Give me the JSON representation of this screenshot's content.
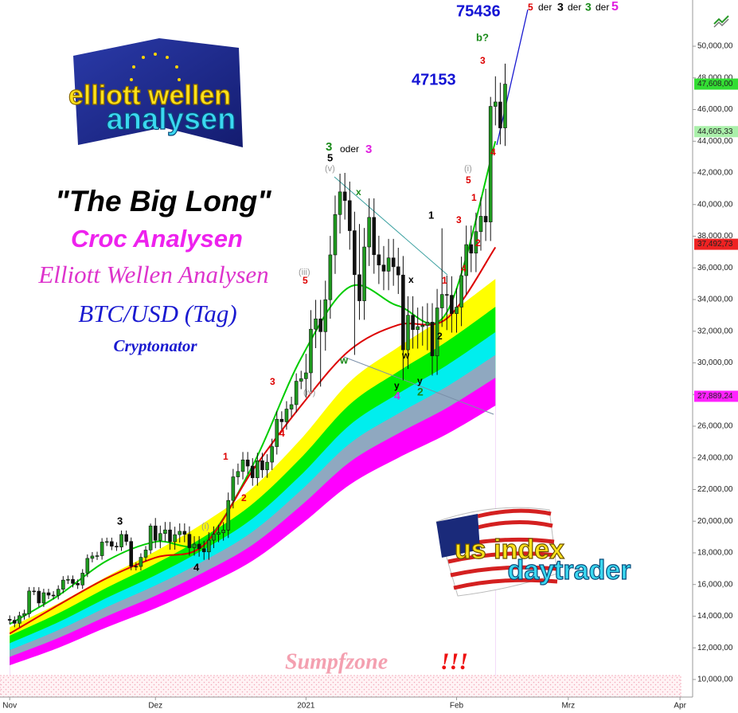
{
  "chart_data": {
    "type": "candlestick",
    "title": "\"The Big Long\"",
    "subtitles": [
      {
        "text": "Croc Analysen",
        "color": "#ee22ee"
      },
      {
        "text": "Elliott Wellen Analysen",
        "color": "#dd33cc"
      },
      {
        "text": "BTC/USD (Tag)",
        "color": "#1a1ad0"
      },
      {
        "text": "Cryptonator",
        "color": "#1a1ad0"
      }
    ],
    "logos": [
      {
        "lines": [
          "elliott wellen",
          "analysen"
        ]
      },
      {
        "lines": [
          "us index",
          "daytrader"
        ]
      }
    ],
    "up_color": "#1f9a1f",
    "down_color": "#111111",
    "grid": false,
    "xlim": [
      -2,
      140.6
    ],
    "xticks": [
      {
        "value": 0,
        "label": "Nov"
      },
      {
        "value": 30,
        "label": "Dez"
      },
      {
        "value": 61,
        "label": "2021"
      },
      {
        "value": 92,
        "label": "Feb"
      },
      {
        "value": 115,
        "label": "Mrz"
      },
      {
        "value": 138,
        "label": "Apr"
      }
    ],
    "ylim": [
      8890,
      52920
    ],
    "yticks": [
      {
        "value": 10000,
        "label": "10,000,00"
      },
      {
        "value": 12000,
        "label": "12,000,00"
      },
      {
        "value": 14000,
        "label": "14,000,00"
      },
      {
        "value": 16000,
        "label": "16,000,00"
      },
      {
        "value": 18000,
        "label": "18,000,00"
      },
      {
        "value": 20000,
        "label": "20,000,00"
      },
      {
        "value": 22000,
        "label": "22,000,00"
      },
      {
        "value": 24000,
        "label": "24,000,00"
      },
      {
        "value": 26000,
        "label": "26,000,00"
      },
      {
        "value": 28000,
        "label": "28,000,00"
      },
      {
        "value": 30000,
        "label": "30,000,00"
      },
      {
        "value": 32000,
        "label": "32,000,00"
      },
      {
        "value": 34000,
        "label": "34,000,00"
      },
      {
        "value": 36000,
        "label": "36,000,00"
      },
      {
        "value": 38000,
        "label": "38,000,00"
      },
      {
        "value": 40000,
        "label": "40,000,00"
      },
      {
        "value": 42000,
        "label": "42,000,00"
      },
      {
        "value": 44000,
        "label": "44,000,00"
      },
      {
        "value": 46000,
        "label": "46,000,00"
      },
      {
        "value": 48000,
        "label": "48,000,00"
      },
      {
        "value": 50000,
        "label": "50,000,00"
      }
    ],
    "x": [
      0,
      1,
      2,
      3,
      4,
      5,
      6,
      7,
      8,
      9,
      10,
      11,
      12,
      13,
      14,
      15,
      16,
      17,
      18,
      19,
      20,
      21,
      22,
      23,
      24,
      25,
      26,
      27,
      28,
      29,
      30,
      31,
      32,
      33,
      34,
      35,
      36,
      37,
      38,
      39,
      40,
      41,
      42,
      43,
      44,
      45,
      46,
      47,
      48,
      49,
      50,
      51,
      52,
      53,
      54,
      55,
      56,
      57,
      58,
      59,
      60,
      61,
      62,
      63,
      64,
      65,
      66,
      67,
      68,
      69,
      70,
      71,
      72,
      73,
      74,
      75,
      76,
      77,
      78,
      79,
      80,
      81,
      82,
      83,
      84,
      85,
      86,
      87,
      88,
      89,
      90,
      91,
      92,
      93,
      94,
      95,
      96,
      97,
      98,
      99,
      100,
      101,
      102
    ],
    "open": [
      13800,
      13740,
      13550,
      14030,
      14160,
      15590,
      15580,
      14830,
      15480,
      15330,
      15310,
      15700,
      16280,
      16320,
      16070,
      15970,
      16720,
      17650,
      17800,
      17820,
      18680,
      18710,
      18420,
      18370,
      19160,
      18720,
      17150,
      17140,
      17720,
      18180,
      19700,
      18790,
      19220,
      19450,
      18700,
      19150,
      19360,
      19170,
      18320,
      18550,
      18260,
      18060,
      18800,
      19170,
      19270,
      19440,
      21310,
      22800,
      23140,
      23870,
      23480,
      22740,
      23820,
      23240,
      23730,
      24710,
      26440,
      26280,
      27080,
      27360,
      28840,
      29000,
      29370,
      32130,
      32780,
      31970,
      33990,
      36820,
      39370,
      40800,
      40250,
      38350,
      35570,
      33920,
      37320,
      39190,
      36830,
      36180,
      35790,
      36630,
      36070,
      35550,
      30820,
      33010,
      32100,
      32290,
      32370,
      32570,
      30440,
      33470,
      34320,
      34270,
      33110,
      33520,
      35510,
      37470,
      36930,
      38290,
      39260,
      38900,
      46200,
      46480,
      44840
    ],
    "high": [
      14050,
      13990,
      14280,
      14410,
      15840,
      15840,
      15830,
      15730,
      15730,
      15580,
      15950,
      16530,
      16570,
      16570,
      16320,
      16970,
      17900,
      18050,
      18070,
      18930,
      18960,
      18960,
      18670,
      19410,
      19410,
      18970,
      17400,
      17970,
      18430,
      19850,
      20200,
      19720,
      19950,
      19950,
      19650,
      19860,
      19860,
      19670,
      19050,
      19050,
      18760,
      19300,
      19670,
      19770,
      19940,
      21810,
      23300,
      23640,
      24370,
      24370,
      23980,
      24320,
      24320,
      24230,
      25210,
      26940,
      26940,
      27580,
      27860,
      29340,
      29500,
      30570,
      33330,
      33980,
      33980,
      35190,
      38020,
      40570,
      41950,
      42000,
      41450,
      39550,
      38770,
      38520,
      40390,
      40390,
      38030,
      37380,
      37830,
      37830,
      37270,
      36750,
      34210,
      34210,
      33490,
      33570,
      33770,
      33770,
      34670,
      38500,
      35520,
      35470,
      34720,
      36710,
      38670,
      38670,
      39490,
      40460,
      41000,
      46800,
      48100,
      47700,
      48900
    ],
    "low": [
      13490,
      13300,
      13300,
      13780,
      13910,
      15330,
      14580,
      14580,
      15080,
      15060,
      15060,
      15450,
      16030,
      15820,
      15720,
      15720,
      16470,
      17400,
      17550,
      17570,
      18430,
      18170,
      18120,
      18120,
      18470,
      16900,
      16890,
      16890,
      17470,
      17930,
      18290,
      18290,
      18720,
      18200,
      18200,
      18650,
      18670,
      17820,
      17820,
      17760,
      17560,
      17560,
      18300,
      18670,
      18770,
      18940,
      20810,
      22300,
      22640,
      22980,
      22240,
      22240,
      22740,
      22740,
      23230,
      24210,
      25780,
      25780,
      26580,
      26860,
      28340,
      27800,
      28170,
      30930,
      28500,
      30770,
      32790,
      35620,
      38170,
      39050,
      37150,
      30500,
      32720,
      32720,
      36120,
      35630,
      34980,
      34590,
      34590,
      34870,
      34350,
      28900,
      29620,
      30900,
      30900,
      31090,
      30800,
      29200,
      29240,
      32270,
      32070,
      31910,
      31910,
      32320,
      34310,
      35730,
      35730,
      37090,
      37700,
      37700,
      45000,
      43800,
      43700
    ],
    "close": [
      13740,
      13550,
      14030,
      14160,
      15590,
      15580,
      14830,
      15480,
      15330,
      15310,
      15700,
      16280,
      16320,
      16070,
      15970,
      16720,
      17650,
      17800,
      17820,
      18680,
      18710,
      18420,
      18370,
      19160,
      18720,
      17150,
      17140,
      17720,
      18180,
      19700,
      18790,
      19220,
      19450,
      18700,
      19150,
      19360,
      19170,
      18320,
      18550,
      18260,
      18060,
      18800,
      19170,
      19270,
      19440,
      21310,
      22800,
      23140,
      23870,
      23480,
      22740,
      23820,
      23240,
      23730,
      24710,
      26440,
      26280,
      27080,
      27360,
      28840,
      29000,
      29370,
      32130,
      32780,
      31970,
      33990,
      36820,
      39370,
      40800,
      40250,
      38350,
      35570,
      33920,
      37320,
      39190,
      36830,
      36180,
      35790,
      36630,
      36070,
      35550,
      30820,
      33010,
      32100,
      32290,
      32370,
      32570,
      30440,
      33470,
      34320,
      34270,
      33110,
      33520,
      35510,
      37470,
      36930,
      38290,
      39260,
      38900,
      46200,
      46480,
      44840,
      47608
    ],
    "ma_x": [
      0,
      10,
      20,
      30,
      40,
      50,
      60,
      70,
      80,
      90,
      100
    ],
    "bands": [
      {
        "color": "#ffff00",
        "values": [
          13300,
          14800,
          16500,
          18100,
          19900,
          22100,
          25200,
          28800,
          31000,
          33000,
          35300
        ]
      },
      {
        "color": "#00ee00",
        "values": [
          12770,
          14180,
          15800,
          17310,
          19020,
          21090,
          24010,
          27370,
          29460,
          31350,
          33540
        ]
      },
      {
        "color": "#00eeee",
        "values": [
          12290,
          13620,
          15160,
          16590,
          18220,
          20170,
          22930,
          26070,
          28060,
          29850,
          31940
        ]
      },
      {
        "color": "#8fa8c0",
        "values": [
          11860,
          13120,
          14580,
          15940,
          17500,
          19340,
          21960,
          24900,
          26800,
          28500,
          30500
        ]
      },
      {
        "color": "#ff00ff",
        "values": [
          11430,
          12620,
          14000,
          15290,
          16780,
          18510,
          20990,
          23730,
          25540,
          27150,
          29060
        ]
      },
      {
        "color": "#ffffff",
        "values": [
          10900,
          12000,
          13300,
          14500,
          15900,
          17500,
          19800,
          22300,
          24000,
          25500,
          27300
        ]
      }
    ],
    "lines": [
      {
        "color": "#00cc00",
        "values": [
          13500,
          15300,
          17500,
          18700,
          18700,
          23500,
          30300,
          34800,
          33600,
          33200,
          44000
        ]
      },
      {
        "color": "#dd0000",
        "values": [
          12900,
          14700,
          16400,
          17700,
          18500,
          23200,
          27300,
          30800,
          32400,
          32800,
          37300
        ]
      }
    ],
    "price_badges": [
      {
        "value": 47608,
        "label": "47,608,00",
        "color": "#33dd33",
        "text_color": "#ffffff"
      },
      {
        "value": 44605,
        "label": "44,605,33",
        "color": "#aaf0aa",
        "text_color": "#114411"
      },
      {
        "value": 37492,
        "label": "37,492,73",
        "color": "#ee2222",
        "text_color": "#ffffff"
      },
      {
        "value": 27889,
        "label": "27,889,24",
        "color": "#ff22ff",
        "text_color": "#ffffff"
      }
    ],
    "annotations": [
      {
        "text": "75436",
        "color": "#1414d4"
      },
      {
        "text": "5",
        "color": "#dd0000"
      },
      {
        "text": "der",
        "color": "#000000"
      },
      {
        "text": "3",
        "color": "#000000"
      },
      {
        "text": "der",
        "color": "#000000"
      },
      {
        "text": "3",
        "color": "#1a8a1a"
      },
      {
        "text": "der",
        "color": "#000000"
      },
      {
        "text": "5",
        "color": "#e020e0"
      },
      {
        "text": "b?",
        "color": "#1a8a1a"
      },
      {
        "text": "3",
        "color": "#dd0000"
      },
      {
        "text": "47153",
        "color": "#1414d4"
      },
      {
        "text": "4",
        "color": "#dd0000"
      },
      {
        "text": "3",
        "color": "#1a8a1a"
      },
      {
        "text": "oder",
        "color": "#000000"
      },
      {
        "text": "3",
        "color": "#e020e0"
      },
      {
        "text": "(v)",
        "color": "#999999"
      },
      {
        "text": "5",
        "color": "#000000"
      },
      {
        "text": "x",
        "color": "#1a8a1a"
      },
      {
        "text": "(iii)",
        "color": "#999999"
      },
      {
        "text": "5",
        "color": "#dd0000"
      },
      {
        "text": "1",
        "color": "#000000"
      },
      {
        "text": "3",
        "color": "#dd0000"
      },
      {
        "text": "(i)",
        "color": "#999999"
      },
      {
        "text": "5",
        "color": "#dd0000"
      },
      {
        "text": "1",
        "color": "#dd0000"
      },
      {
        "text": "2",
        "color": "#dd0000"
      },
      {
        "text": "4",
        "color": "#dd0000"
      },
      {
        "text": "1",
        "color": "#dd0000"
      },
      {
        "text": "x",
        "color": "#000000"
      },
      {
        "text": "w",
        "color": "#1a8a1a"
      },
      {
        "text": "w",
        "color": "#000000"
      },
      {
        "text": "y",
        "color": "#000000"
      },
      {
        "text": "4",
        "color": "#e020e0"
      },
      {
        "text": "y",
        "color": "#000000"
      },
      {
        "text": "2",
        "color": "#1a8a1a"
      },
      {
        "text": "2",
        "color": "#000000"
      },
      {
        "text": "(iv)",
        "color": "#999999"
      },
      {
        "text": "3",
        "color": "#dd0000"
      },
      {
        "text": "4",
        "color": "#dd0000"
      },
      {
        "text": "1",
        "color": "#dd0000"
      },
      {
        "text": "2",
        "color": "#dd0000"
      },
      {
        "text": "3",
        "color": "#000000"
      },
      {
        "text": "(i)",
        "color": "#999999"
      },
      {
        "text": "4",
        "color": "#000000"
      },
      {
        "text": "Sumpfzone",
        "color": "#f4a0b0"
      },
      {
        "text": "!!!",
        "color": "#ee1111"
      }
    ]
  }
}
